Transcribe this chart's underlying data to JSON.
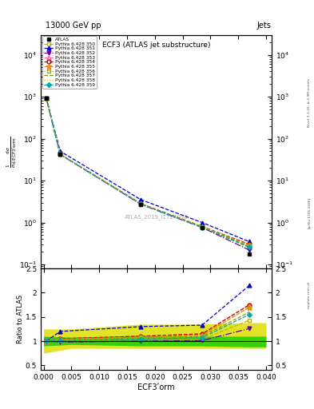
{
  "title_top": "13000 GeV pp",
  "title_right": "Jets",
  "plot_title": "ECF3 (ATLAS jet substructure)",
  "xlabel": "ECF3ʹorm",
  "ylabel_ratio": "Ratio to ATLAS",
  "watermark": "ATLAS_2019_I1724098",
  "rivet_text": "Rivet 3.1.10; ≥ 2.9M events",
  "arxiv_text": "[arXiv:1306.3436]",
  "mcplots_text": "mcplots.cern.ch",
  "x_data": [
    0.0005,
    0.003,
    0.0175,
    0.0285,
    0.037
  ],
  "atlas_y": [
    900,
    42,
    2.7,
    0.75,
    0.175
  ],
  "series": [
    {
      "label": "Pythia 6.428 350",
      "color": "#b8b800",
      "marker": "s",
      "fillstyle": "none",
      "linestyle": "--",
      "y_main": [
        900,
        42,
        2.8,
        0.78,
        0.25
      ],
      "y_ratio": [
        1.0,
        1.0,
        1.04,
        1.04,
        1.43
      ]
    },
    {
      "label": "Pythia 6.428 351",
      "color": "#0000cc",
      "marker": "^",
      "fillstyle": "full",
      "linestyle": "--",
      "y_main": [
        900,
        50,
        3.5,
        1.0,
        0.35
      ],
      "y_ratio": [
        1.0,
        1.2,
        1.3,
        1.33,
        2.15
      ]
    },
    {
      "label": "Pythia 6.428 352",
      "color": "#6600aa",
      "marker": "v",
      "fillstyle": "full",
      "linestyle": "-.",
      "y_main": [
        900,
        42,
        2.7,
        0.76,
        0.22
      ],
      "y_ratio": [
        1.0,
        0.98,
        1.0,
        1.01,
        1.26
      ]
    },
    {
      "label": "Pythia 6.428 353",
      "color": "#ff66aa",
      "marker": "^",
      "fillstyle": "none",
      "linestyle": "--",
      "y_main": [
        900,
        42,
        2.8,
        0.8,
        0.3
      ],
      "y_ratio": [
        1.0,
        1.05,
        1.1,
        1.15,
        1.75
      ]
    },
    {
      "label": "Pythia 6.428 354",
      "color": "#cc0000",
      "marker": "o",
      "fillstyle": "none",
      "linestyle": "--",
      "y_main": [
        900,
        42,
        2.8,
        0.8,
        0.3
      ],
      "y_ratio": [
        1.0,
        1.05,
        1.1,
        1.15,
        1.75
      ]
    },
    {
      "label": "Pythia 6.428 355",
      "color": "#ff8800",
      "marker": "*",
      "fillstyle": "full",
      "linestyle": "--",
      "y_main": [
        900,
        42,
        2.8,
        0.79,
        0.29
      ],
      "y_ratio": [
        1.0,
        1.04,
        1.08,
        1.12,
        1.7
      ]
    },
    {
      "label": "Pythia 6.428 356",
      "color": "#aaaa00",
      "marker": "s",
      "fillstyle": "none",
      "linestyle": ":",
      "y_main": [
        900,
        42,
        2.8,
        0.79,
        0.29
      ],
      "y_ratio": [
        1.0,
        1.04,
        1.08,
        1.12,
        1.7
      ]
    },
    {
      "label": "Pythia 6.428 357",
      "color": "#888800",
      "marker": null,
      "fillstyle": "full",
      "linestyle": "--",
      "y_main": [
        900,
        42,
        2.8,
        0.79,
        0.27
      ],
      "y_ratio": [
        1.0,
        1.02,
        1.06,
        1.1,
        1.6
      ]
    },
    {
      "label": "Pythia 6.428 358",
      "color": "#cccc00",
      "marker": null,
      "fillstyle": "full",
      "linestyle": ":",
      "y_main": [
        900,
        42,
        2.8,
        0.79,
        0.27
      ],
      "y_ratio": [
        1.0,
        1.02,
        1.06,
        1.1,
        1.6
      ]
    },
    {
      "label": "Pythia 6.428 359",
      "color": "#00aaaa",
      "marker": "D",
      "fillstyle": "full",
      "linestyle": "--",
      "y_main": [
        900,
        42,
        2.75,
        0.77,
        0.26
      ],
      "y_ratio": [
        1.0,
        1.01,
        1.04,
        1.07,
        1.55
      ]
    }
  ],
  "band_x": [
    0.0,
    0.005,
    0.0175,
    0.0285,
    0.037,
    0.04
  ],
  "band_yellow_lo": [
    0.75,
    0.85,
    0.85,
    0.85,
    0.85,
    0.85
  ],
  "band_yellow_hi": [
    1.25,
    1.25,
    1.35,
    1.35,
    1.38,
    1.38
  ],
  "band_green_lo": [
    0.9,
    0.93,
    0.9,
    0.9,
    0.88,
    0.88
  ],
  "band_green_hi": [
    1.1,
    1.08,
    1.12,
    1.1,
    1.1,
    1.1
  ],
  "xlim": [
    -0.0005,
    0.041
  ],
  "ylim_main": [
    0.08,
    30000
  ],
  "ylim_ratio": [
    0.4,
    2.5
  ],
  "yticks_ratio": [
    0.5,
    1.0,
    1.5,
    2.0,
    2.5
  ]
}
